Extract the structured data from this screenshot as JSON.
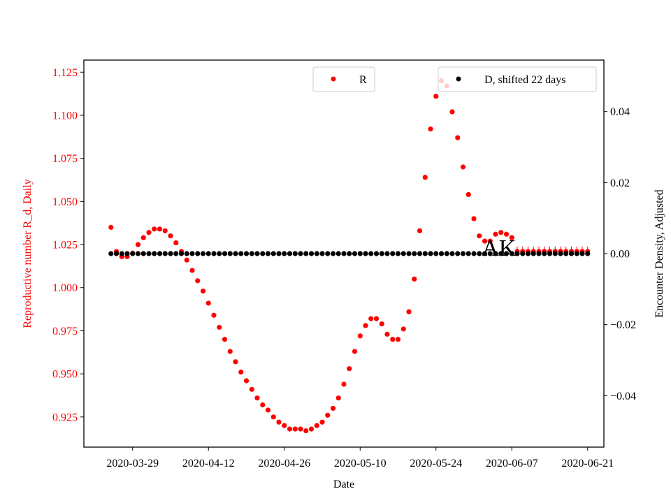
{
  "chart_data": {
    "type": "scatter",
    "xlabel": "Date",
    "y_left_label": "Reproductive number R_d, Daily",
    "y_right_label": "Encounter Density, Adjusted",
    "x_start_date": "2020-03-25",
    "x_end_date": "2020-06-21",
    "xlim": [
      "2020-03-20",
      "2020-06-24"
    ],
    "x_ticks": [
      "2020-03-29",
      "2020-04-12",
      "2020-04-26",
      "2020-05-10",
      "2020-05-24",
      "2020-06-07",
      "2020-06-21"
    ],
    "ylim_left": [
      0.9075,
      1.132
    ],
    "ylim_right": [
      -0.0545,
      0.0545
    ],
    "y_left_ticks": [
      "0.925",
      "0.950",
      "0.975",
      "1.000",
      "1.025",
      "1.050",
      "1.075",
      "1.100",
      "1.125"
    ],
    "y_right_ticks": [
      "−0.04",
      "−0.02",
      "0.00",
      "0.02",
      "0.04"
    ],
    "series": [
      {
        "name": "R",
        "axis": "left",
        "color": "#ff0000",
        "values": [
          1.035,
          1.021,
          1.018,
          1.018,
          1.02,
          1.025,
          1.029,
          1.032,
          1.034,
          1.034,
          1.033,
          1.03,
          1.026,
          1.021,
          1.016,
          1.01,
          1.004,
          0.998,
          0.991,
          0.984,
          0.977,
          0.97,
          0.963,
          0.957,
          0.951,
          0.946,
          0.941,
          0.936,
          0.932,
          0.929,
          0.925,
          0.922,
          0.92,
          0.918,
          0.918,
          0.918,
          0.917,
          0.918,
          0.92,
          0.922,
          0.926,
          0.93,
          0.936,
          0.944,
          0.953,
          0.963,
          0.972,
          0.978,
          0.982,
          0.982,
          0.979,
          0.973,
          0.97,
          0.97,
          0.976,
          0.986,
          1.005,
          1.033,
          1.064,
          1.092,
          1.111,
          1.12,
          1.117,
          1.102,
          1.087,
          1.07,
          1.054,
          1.04,
          1.03,
          1.027,
          1.027,
          1.031,
          1.032,
          1.031,
          1.029,
          1.021,
          1.021,
          1.021,
          1.021,
          1.021,
          1.021,
          1.021,
          1.021,
          1.021,
          1.021,
          1.021,
          1.021,
          1.021,
          1.021
        ]
      },
      {
        "name": "D, shifted 22 days",
        "axis": "right",
        "color": "#000000",
        "values": [
          0,
          0,
          0,
          0,
          0,
          0,
          0,
          0,
          0,
          0,
          0,
          0,
          0,
          0,
          0,
          0,
          0,
          0,
          0,
          0,
          0,
          0,
          0,
          0,
          0,
          0,
          0,
          0,
          0,
          0,
          0,
          0,
          0,
          0,
          0,
          0,
          0,
          0,
          0,
          0,
          0,
          0,
          0,
          0,
          0,
          0,
          0,
          0,
          0,
          0,
          0,
          0,
          0,
          0,
          0,
          0,
          0,
          0,
          0,
          0,
          0,
          0,
          0,
          0,
          0,
          0,
          0,
          0,
          0,
          0,
          0,
          0,
          0,
          0,
          0,
          0,
          0,
          0,
          0,
          0,
          0,
          0,
          0,
          0,
          0,
          0,
          0,
          0,
          0
        ]
      }
    ],
    "annotation": "AK",
    "legend_left_label": "R",
    "legend_right_label": "D, shifted 22 days",
    "left_axis_color": "#ff0000",
    "right_axis_color": "#000000"
  }
}
